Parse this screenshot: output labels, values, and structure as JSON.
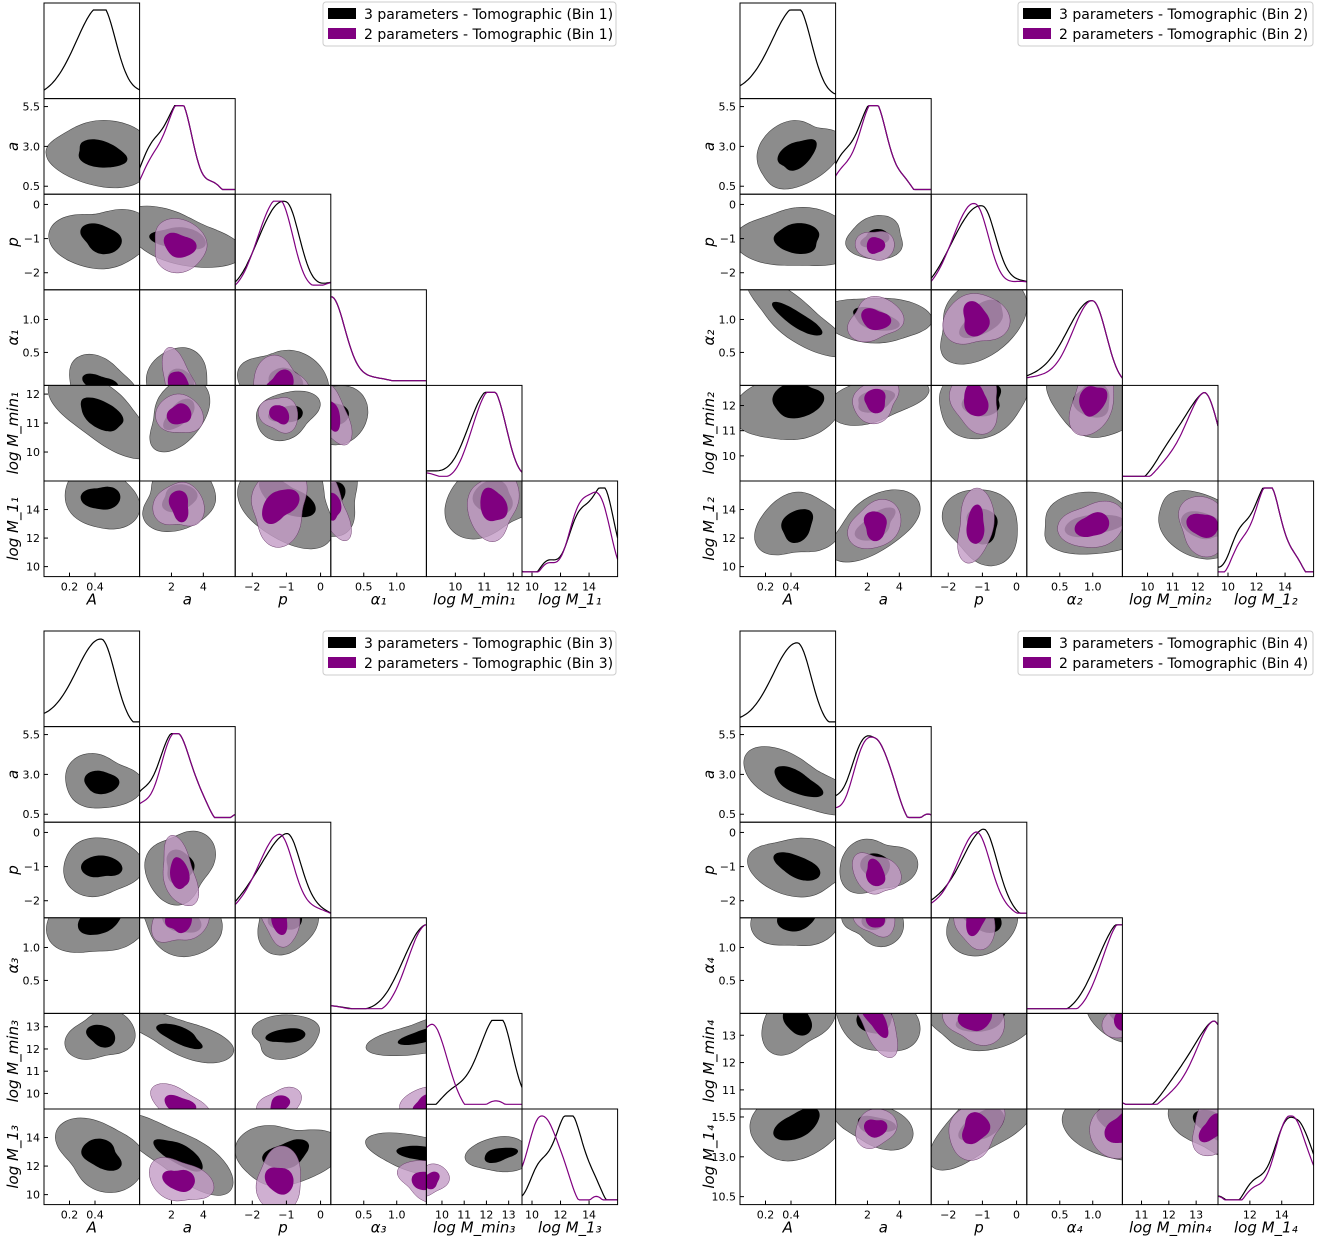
{
  "colors": {
    "three_param": "#000000",
    "three_param_outer": "#8c8c8c",
    "two_param": "#800080",
    "two_param_outer": "#c39bc6"
  },
  "legend_item_three": "3 parameters - Tomographic",
  "legend_item_two": "2 parameters - Tomographic",
  "chart_data": [
    {
      "type": "corner",
      "legend": [
        "3 parameters - Tomographic (Bin 1)",
        "2 parameters - Tomographic (Bin 1)"
      ],
      "params": [
        {
          "label": "A",
          "ticks": [
            "0.2",
            "0.4"
          ],
          "tick_values": [
            0.2,
            0.4
          ],
          "range": [
            0.0,
            0.75
          ]
        },
        {
          "label": "a",
          "ticks": [
            "0.5",
            "3.0",
            "5.5"
          ],
          "xticks": [
            "2",
            "4"
          ],
          "tick_values": [
            0.5,
            3.0,
            5.5
          ],
          "xtick_values": [
            2,
            4
          ],
          "range": [
            0.0,
            6.0
          ]
        },
        {
          "label": "p",
          "ticks": [
            "−2",
            "−1",
            "0"
          ],
          "tick_values": [
            -2,
            -1,
            0
          ],
          "range": [
            -2.5,
            0.3
          ]
        },
        {
          "label": "α₁",
          "ticks": [
            "0.5",
            "1.0"
          ],
          "tick_values": [
            0.5,
            1.0
          ],
          "range": [
            0.0,
            1.45
          ]
        },
        {
          "label": "log M_min₁",
          "ticks": [
            "10",
            "11",
            "12"
          ],
          "tick_values": [
            10,
            11,
            12
          ],
          "range": [
            9.0,
            12.3
          ]
        },
        {
          "label": "log M_1₁",
          "ticks": [
            "10",
            "12",
            "14"
          ],
          "tick_values": [
            10,
            12,
            14
          ],
          "range": [
            9.3,
            16.0
          ]
        }
      ],
      "marginal_peaks": {
        "three_param": [
          0.45,
          2.5,
          -1.0,
          0.0,
          11.3,
          14.8
        ],
        "two_param": [
          null,
          2.5,
          -1.2,
          0.0,
          11.3,
          14.3
        ]
      }
    },
    {
      "type": "corner",
      "legend": [
        "3 parameters - Tomographic (Bin 2)",
        "2 parameters - Tomographic (Bin 2)"
      ],
      "params": [
        {
          "label": "A",
          "ticks": [
            "0.2",
            "0.4"
          ],
          "tick_values": [
            0.2,
            0.4
          ],
          "range": [
            0.0,
            0.75
          ]
        },
        {
          "label": "a",
          "ticks": [
            "0.5",
            "3.0",
            "5.5"
          ],
          "xticks": [
            "2",
            "4"
          ],
          "tick_values": [
            0.5,
            3.0,
            5.5
          ],
          "xtick_values": [
            2,
            4
          ],
          "range": [
            0.0,
            6.0
          ]
        },
        {
          "label": "p",
          "ticks": [
            "−2",
            "−1",
            "0"
          ],
          "tick_values": [
            -2,
            -1,
            0
          ],
          "range": [
            -2.5,
            0.3
          ]
        },
        {
          "label": "α₂",
          "ticks": [
            "0.5",
            "1.0"
          ],
          "tick_values": [
            0.5,
            1.0
          ],
          "range": [
            0.0,
            1.45
          ]
        },
        {
          "label": "log M_min₂",
          "ticks": [
            "10",
            "11",
            "12"
          ],
          "tick_values": [
            10,
            11,
            12
          ],
          "range": [
            9.0,
            12.8
          ]
        },
        {
          "label": "log M_1₂",
          "ticks": [
            "10",
            "12",
            "14"
          ],
          "tick_values": [
            10,
            12,
            14
          ],
          "range": [
            9.3,
            16.0
          ]
        }
      ],
      "marginal_peaks": {
        "three_param": [
          0.45,
          2.5,
          -1.0,
          1.0,
          12.2,
          12.9
        ],
        "two_param": [
          null,
          2.5,
          -1.2,
          1.0,
          12.2,
          12.9
        ]
      }
    },
    {
      "type": "corner",
      "legend": [
        "3 parameters - Tomographic (Bin 3)",
        "2 parameters - Tomographic (Bin 3)"
      ],
      "params": [
        {
          "label": "A",
          "ticks": [
            "0.2",
            "0.4"
          ],
          "tick_values": [
            0.2,
            0.4
          ],
          "range": [
            0.0,
            0.75
          ]
        },
        {
          "label": "a",
          "ticks": [
            "0.5",
            "3.0",
            "5.5"
          ],
          "xticks": [
            "2",
            "4"
          ],
          "tick_values": [
            0.5,
            3.0,
            5.5
          ],
          "xtick_values": [
            2,
            4
          ],
          "range": [
            0.0,
            6.0
          ]
        },
        {
          "label": "p",
          "ticks": [
            "−2",
            "−1",
            "0"
          ],
          "tick_values": [
            -2,
            -1,
            0
          ],
          "range": [
            -2.5,
            0.3
          ]
        },
        {
          "label": "α₃",
          "ticks": [
            "0.5",
            "1.0"
          ],
          "tick_values": [
            0.5,
            1.0
          ],
          "range": [
            0.0,
            1.45
          ]
        },
        {
          "label": "log M_min₃",
          "ticks": [
            "10",
            "11",
            "12",
            "13"
          ],
          "tick_values": [
            10,
            11,
            12,
            13
          ],
          "range": [
            9.3,
            13.6
          ]
        },
        {
          "label": "log M_1₃",
          "ticks": [
            "10",
            "12",
            "14"
          ],
          "tick_values": [
            10,
            12,
            14
          ],
          "range": [
            9.3,
            16.0
          ]
        }
      ],
      "marginal_peaks": {
        "three_param": [
          0.45,
          2.5,
          -1.0,
          1.45,
          12.6,
          12.8
        ],
        "two_param": [
          null,
          2.5,
          -1.2,
          1.45,
          9.5,
          11.0
        ]
      }
    },
    {
      "type": "corner",
      "legend": [
        "3 parameters - Tomographic (Bin 4)",
        "2 parameters - Tomographic (Bin 4)"
      ],
      "params": [
        {
          "label": "A",
          "ticks": [
            "0.2",
            "0.4"
          ],
          "tick_values": [
            0.2,
            0.4
          ],
          "range": [
            0.0,
            0.75
          ]
        },
        {
          "label": "a",
          "ticks": [
            "0.5",
            "3.0",
            "5.5"
          ],
          "xticks": [
            "2",
            "4"
          ],
          "tick_values": [
            0.5,
            3.0,
            5.5
          ],
          "xtick_values": [
            2,
            4
          ],
          "range": [
            0.0,
            6.0
          ]
        },
        {
          "label": "p",
          "ticks": [
            "−2",
            "−1",
            "0"
          ],
          "tick_values": [
            -2,
            -1,
            0
          ],
          "range": [
            -2.5,
            0.3
          ]
        },
        {
          "label": "α₄",
          "ticks": [
            "0.5",
            "1.0"
          ],
          "tick_values": [
            0.5,
            1.0
          ],
          "range": [
            0.0,
            1.45
          ]
        },
        {
          "label": "log M_min₄",
          "ticks": [
            "11",
            "12",
            "13"
          ],
          "tick_values": [
            11,
            12,
            13
          ],
          "range": [
            10.3,
            13.8
          ]
        },
        {
          "label": "log M_1₄",
          "ticks": [
            "10.5",
            "13.0",
            "15.5"
          ],
          "xticks": [
            "12",
            "14"
          ],
          "tick_values": [
            10.5,
            13.0,
            15.5
          ],
          "xtick_values": [
            12,
            14
          ],
          "range": [
            10.0,
            16.0
          ]
        }
      ],
      "marginal_peaks": {
        "three_param": [
          0.45,
          2.5,
          -1.0,
          1.45,
          13.6,
          15.0
        ],
        "two_param": [
          null,
          2.5,
          -1.2,
          1.45,
          13.6,
          14.8
        ]
      }
    }
  ]
}
